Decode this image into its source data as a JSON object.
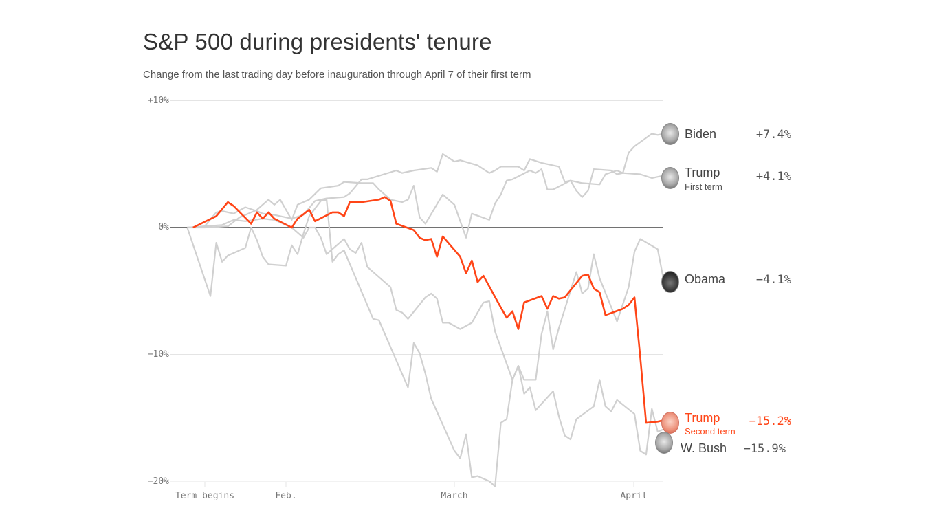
{
  "title": "S&P 500 during presidents' tenure",
  "subtitle": "Change from the last trading day before inauguration through April 7 of their first term",
  "colors": {
    "highlight": "#ff4517",
    "other": "#d0d0d0",
    "zero_line": "#444444",
    "grid": "#e4e4e4"
  },
  "chart_data": {
    "type": "line",
    "title": "S&P 500 during presidents' tenure",
    "xlabel": "",
    "ylabel": "",
    "ylim": [
      -20,
      10
    ],
    "y_ticks": [
      "+10%",
      "0%",
      "−10%",
      "−20%"
    ],
    "x_ticks": [
      "Term begins",
      "Feb.",
      "March",
      "April"
    ],
    "grid": "horizontal",
    "series": [
      {
        "name": "Biden",
        "label_value": "+7.4%",
        "face": "biden-face-icon",
        "points": [
          [
            "01-15",
            0
          ],
          [
            "01-18",
            0
          ],
          [
            "01-22",
            0.1
          ],
          [
            "01-24",
            0.8
          ],
          [
            "01-25",
            1.0
          ],
          [
            "01-27",
            1.4
          ],
          [
            "01-29",
            2.2
          ],
          [
            "01-30",
            1.8
          ],
          [
            "01-31",
            2.2
          ],
          [
            "02-02",
            0.6
          ],
          [
            "02-03",
            1.8
          ],
          [
            "02-05",
            2.2
          ],
          [
            "02-07",
            3.1
          ],
          [
            "02-10",
            3.3
          ],
          [
            "02-11",
            3.6
          ],
          [
            "02-14",
            3.5
          ],
          [
            "02-16",
            3.5
          ],
          [
            "02-17",
            3.0
          ],
          [
            "02-19",
            2.2
          ],
          [
            "02-21",
            2.0
          ],
          [
            "02-22",
            2.2
          ],
          [
            "02-23",
            3.3
          ],
          [
            "02-24",
            0.8
          ],
          [
            "02-25",
            0.3
          ],
          [
            "02-28",
            2.6
          ],
          [
            "03-02",
            1.8
          ],
          [
            "03-04",
            -0.8
          ],
          [
            "03-05",
            1.1
          ],
          [
            "03-08",
            0.6
          ],
          [
            "03-09",
            1.9
          ],
          [
            "03-10",
            2.6
          ],
          [
            "03-11",
            3.7
          ],
          [
            "03-12",
            3.8
          ],
          [
            "03-15",
            4.5
          ],
          [
            "03-16",
            4.3
          ],
          [
            "03-17",
            4.6
          ],
          [
            "03-18",
            3.0
          ],
          [
            "03-19",
            3.0
          ],
          [
            "03-22",
            3.7
          ],
          [
            "03-23",
            2.9
          ],
          [
            "03-24",
            2.4
          ],
          [
            "03-25",
            2.9
          ],
          [
            "03-26",
            4.6
          ],
          [
            "03-29",
            4.5
          ],
          [
            "03-30",
            4.2
          ],
          [
            "03-31",
            4.3
          ],
          [
            "04-01",
            5.9
          ],
          [
            "04-02",
            6.4
          ],
          [
            "04-05",
            7.4
          ],
          [
            "04-06",
            7.3
          ],
          [
            "04-07",
            7.4
          ]
        ]
      },
      {
        "name": "Trump",
        "subname": "First term",
        "label_value": "+4.1%",
        "face": "trump-face-icon",
        "points": [
          [
            "01-15",
            0
          ],
          [
            "01-18",
            0.1
          ],
          [
            "01-20",
            1.2
          ],
          [
            "01-21",
            1.3
          ],
          [
            "01-23",
            1.1
          ],
          [
            "01-25",
            1.6
          ],
          [
            "01-27",
            1.3
          ],
          [
            "01-28",
            1.1
          ],
          [
            "01-30",
            1.0
          ],
          [
            "02-02",
            0.7
          ],
          [
            "02-04",
            1.0
          ],
          [
            "02-06",
            2.1
          ],
          [
            "02-08",
            2.3
          ],
          [
            "02-11",
            2.4
          ],
          [
            "02-12",
            2.7
          ],
          [
            "02-14",
            3.8
          ],
          [
            "02-15",
            3.8
          ],
          [
            "02-20",
            4.5
          ],
          [
            "02-21",
            4.3
          ],
          [
            "02-23",
            4.5
          ],
          [
            "02-26",
            4.7
          ],
          [
            "02-27",
            4.4
          ],
          [
            "02-28",
            5.8
          ],
          [
            "03-02",
            5.2
          ],
          [
            "03-03",
            5.3
          ],
          [
            "03-06",
            4.9
          ],
          [
            "03-08",
            4.3
          ],
          [
            "03-09",
            4.5
          ],
          [
            "03-10",
            4.8
          ],
          [
            "03-13",
            4.8
          ],
          [
            "03-14",
            4.5
          ],
          [
            "03-15",
            5.4
          ],
          [
            "03-17",
            5.1
          ],
          [
            "03-20",
            4.8
          ],
          [
            "03-21",
            3.6
          ],
          [
            "03-22",
            3.7
          ],
          [
            "03-24",
            3.5
          ],
          [
            "03-27",
            3.4
          ],
          [
            "03-28",
            4.2
          ],
          [
            "03-30",
            4.5
          ],
          [
            "03-31",
            4.3
          ],
          [
            "04-03",
            4.2
          ],
          [
            "04-05",
            3.9
          ],
          [
            "04-06",
            4.0
          ],
          [
            "04-07",
            4.1
          ]
        ]
      },
      {
        "name": "Obama",
        "label_value": "−4.1%",
        "face": "obama-face-icon",
        "points": [
          [
            "01-15",
            0
          ],
          [
            "01-18",
            0.1
          ],
          [
            "01-21",
            0.2
          ],
          [
            "01-23",
            0.6
          ],
          [
            "01-25",
            0.5
          ],
          [
            "01-28",
            0.7
          ],
          [
            "01-30",
            0.6
          ],
          [
            "02-02",
            0
          ],
          [
            "02-04",
            -0.8
          ],
          [
            "02-05",
            0
          ],
          [
            "02-06",
            0
          ],
          [
            "02-07",
            -0.8
          ],
          [
            "02-08",
            -2.1
          ],
          [
            "02-11",
            -0.9
          ],
          [
            "02-12",
            -1.7
          ],
          [
            "02-13",
            -2.0
          ],
          [
            "02-14",
            -1.2
          ],
          [
            "02-15",
            -3.1
          ],
          [
            "02-19",
            -4.7
          ],
          [
            "02-20",
            -6.5
          ],
          [
            "02-21",
            -6.7
          ],
          [
            "02-22",
            -7.2
          ],
          [
            "02-25",
            -5.5
          ],
          [
            "02-26",
            -5.2
          ],
          [
            "02-27",
            -5.6
          ],
          [
            "02-28",
            -7.5
          ],
          [
            "03-01",
            -7.5
          ],
          [
            "03-03",
            -8.0
          ],
          [
            "03-05",
            -7.5
          ],
          [
            "03-06",
            -6.7
          ],
          [
            "03-07",
            -5.9
          ],
          [
            "03-08",
            -5.8
          ],
          [
            "03-09",
            -8.2
          ],
          [
            "03-12",
            -12.0
          ],
          [
            "03-13",
            -10.9
          ],
          [
            "03-14",
            -12.0
          ],
          [
            "03-16",
            -12.0
          ],
          [
            "03-17",
            -8.4
          ],
          [
            "03-18",
            -6.6
          ],
          [
            "03-19",
            -9.6
          ],
          [
            "03-20",
            -7.9
          ],
          [
            "03-23",
            -3.5
          ],
          [
            "03-24",
            -5.2
          ],
          [
            "03-25",
            -4.8
          ],
          [
            "03-26",
            -2.1
          ],
          [
            "03-27",
            -4.0
          ],
          [
            "03-30",
            -7.4
          ],
          [
            "04-01",
            -4.7
          ],
          [
            "04-02",
            -1.9
          ],
          [
            "04-03",
            -0.9
          ],
          [
            "04-06",
            -1.7
          ],
          [
            "04-07",
            -4.1
          ]
        ]
      },
      {
        "name": "W. Bush",
        "label_value": "−15.9%",
        "face": "bush-face-icon",
        "points": [
          [
            "01-15",
            0
          ],
          [
            "01-19",
            -5.4
          ],
          [
            "01-20",
            -1.2
          ],
          [
            "01-21",
            -2.7
          ],
          [
            "01-22",
            -2.2
          ],
          [
            "01-25",
            -1.6
          ],
          [
            "01-26",
            0
          ],
          [
            "01-27",
            -1.0
          ],
          [
            "01-28",
            -2.3
          ],
          [
            "01-29",
            -2.9
          ],
          [
            "02-01",
            -3.0
          ],
          [
            "02-02",
            -1.4
          ],
          [
            "02-03",
            -2.1
          ],
          [
            "02-04",
            -0.5
          ],
          [
            "02-05",
            0.9
          ],
          [
            "02-07",
            2.1
          ],
          [
            "02-08",
            2.2
          ],
          [
            "02-09",
            -2.7
          ],
          [
            "02-10",
            -2.1
          ],
          [
            "02-11",
            -1.8
          ],
          [
            "02-16",
            -7.2
          ],
          [
            "02-17",
            -7.3
          ],
          [
            "02-22",
            -12.6
          ],
          [
            "02-23",
            -9.1
          ],
          [
            "02-24",
            -9.9
          ],
          [
            "02-25",
            -11.5
          ],
          [
            "02-26",
            -13.5
          ],
          [
            "03-02",
            -17.6
          ],
          [
            "03-03",
            -18.2
          ],
          [
            "03-04",
            -16.3
          ],
          [
            "03-05",
            -19.7
          ],
          [
            "03-06",
            -19.6
          ],
          [
            "03-08",
            -20.0
          ],
          [
            "03-09",
            -20.4
          ],
          [
            "03-10",
            -15.4
          ],
          [
            "03-11",
            -15.1
          ],
          [
            "03-12",
            -12.0
          ],
          [
            "03-13",
            -10.9
          ],
          [
            "03-14",
            -13.1
          ],
          [
            "03-15",
            -12.6
          ],
          [
            "03-16",
            -14.4
          ],
          [
            "03-19",
            -12.9
          ],
          [
            "03-20",
            -14.9
          ],
          [
            "03-21",
            -16.4
          ],
          [
            "03-22",
            -16.7
          ],
          [
            "03-23",
            -15.1
          ],
          [
            "03-26",
            -14.1
          ],
          [
            "03-27",
            -12.0
          ],
          [
            "03-28",
            -14.1
          ],
          [
            "03-29",
            -14.5
          ],
          [
            "03-30",
            -13.6
          ],
          [
            "04-02",
            -14.7
          ],
          [
            "04-03",
            -17.6
          ],
          [
            "04-04",
            -17.9
          ],
          [
            "04-05",
            -14.3
          ],
          [
            "04-06",
            -16.1
          ],
          [
            "04-07",
            -15.9
          ]
        ]
      },
      {
        "name": "Trump",
        "subname": "Second term",
        "label_value": "−15.2%",
        "face": "trump-face-icon",
        "highlight": true,
        "points": [
          [
            "01-16",
            0
          ],
          [
            "01-20",
            0.9
          ],
          [
            "01-22",
            2.0
          ],
          [
            "01-23",
            1.7
          ],
          [
            "01-26",
            0.3
          ],
          [
            "01-27",
            1.2
          ],
          [
            "01-28",
            0.7
          ],
          [
            "01-29",
            1.2
          ],
          [
            "01-30",
            0.7
          ],
          [
            "02-02",
            0
          ],
          [
            "02-03",
            0.7
          ],
          [
            "02-05",
            1.4
          ],
          [
            "02-06",
            0.5
          ],
          [
            "02-09",
            1.2
          ],
          [
            "02-10",
            1.2
          ],
          [
            "02-11",
            0.9
          ],
          [
            "02-12",
            2.0
          ],
          [
            "02-14",
            2.0
          ],
          [
            "02-17",
            2.2
          ],
          [
            "02-18",
            2.4
          ],
          [
            "02-19",
            2.1
          ],
          [
            "02-20",
            0.3
          ],
          [
            "02-23",
            -0.2
          ],
          [
            "02-24",
            -0.8
          ],
          [
            "02-25",
            -1.0
          ],
          [
            "02-26",
            -0.9
          ],
          [
            "02-27",
            -2.3
          ],
          [
            "02-28",
            -0.7
          ],
          [
            "03-03",
            -2.3
          ],
          [
            "03-04",
            -3.6
          ],
          [
            "03-05",
            -2.6
          ],
          [
            "03-06",
            -4.3
          ],
          [
            "03-07",
            -3.8
          ],
          [
            "03-10",
            -6.3
          ],
          [
            "03-11",
            -7.1
          ],
          [
            "03-12",
            -6.6
          ],
          [
            "03-13",
            -8.0
          ],
          [
            "03-14",
            -5.9
          ],
          [
            "03-17",
            -5.4
          ],
          [
            "03-18",
            -6.4
          ],
          [
            "03-19",
            -5.4
          ],
          [
            "03-20",
            -5.6
          ],
          [
            "03-21",
            -5.5
          ],
          [
            "03-24",
            -3.8
          ],
          [
            "03-25",
            -3.7
          ],
          [
            "03-26",
            -4.8
          ],
          [
            "03-27",
            -5.1
          ],
          [
            "03-28",
            -6.9
          ],
          [
            "03-31",
            -6.4
          ],
          [
            "04-01",
            -6.1
          ],
          [
            "04-02",
            -5.5
          ],
          [
            "04-03",
            -10.2
          ],
          [
            "04-04",
            -15.4
          ],
          [
            "04-06",
            -15.3
          ],
          [
            "04-07",
            -15.2
          ]
        ]
      }
    ]
  }
}
